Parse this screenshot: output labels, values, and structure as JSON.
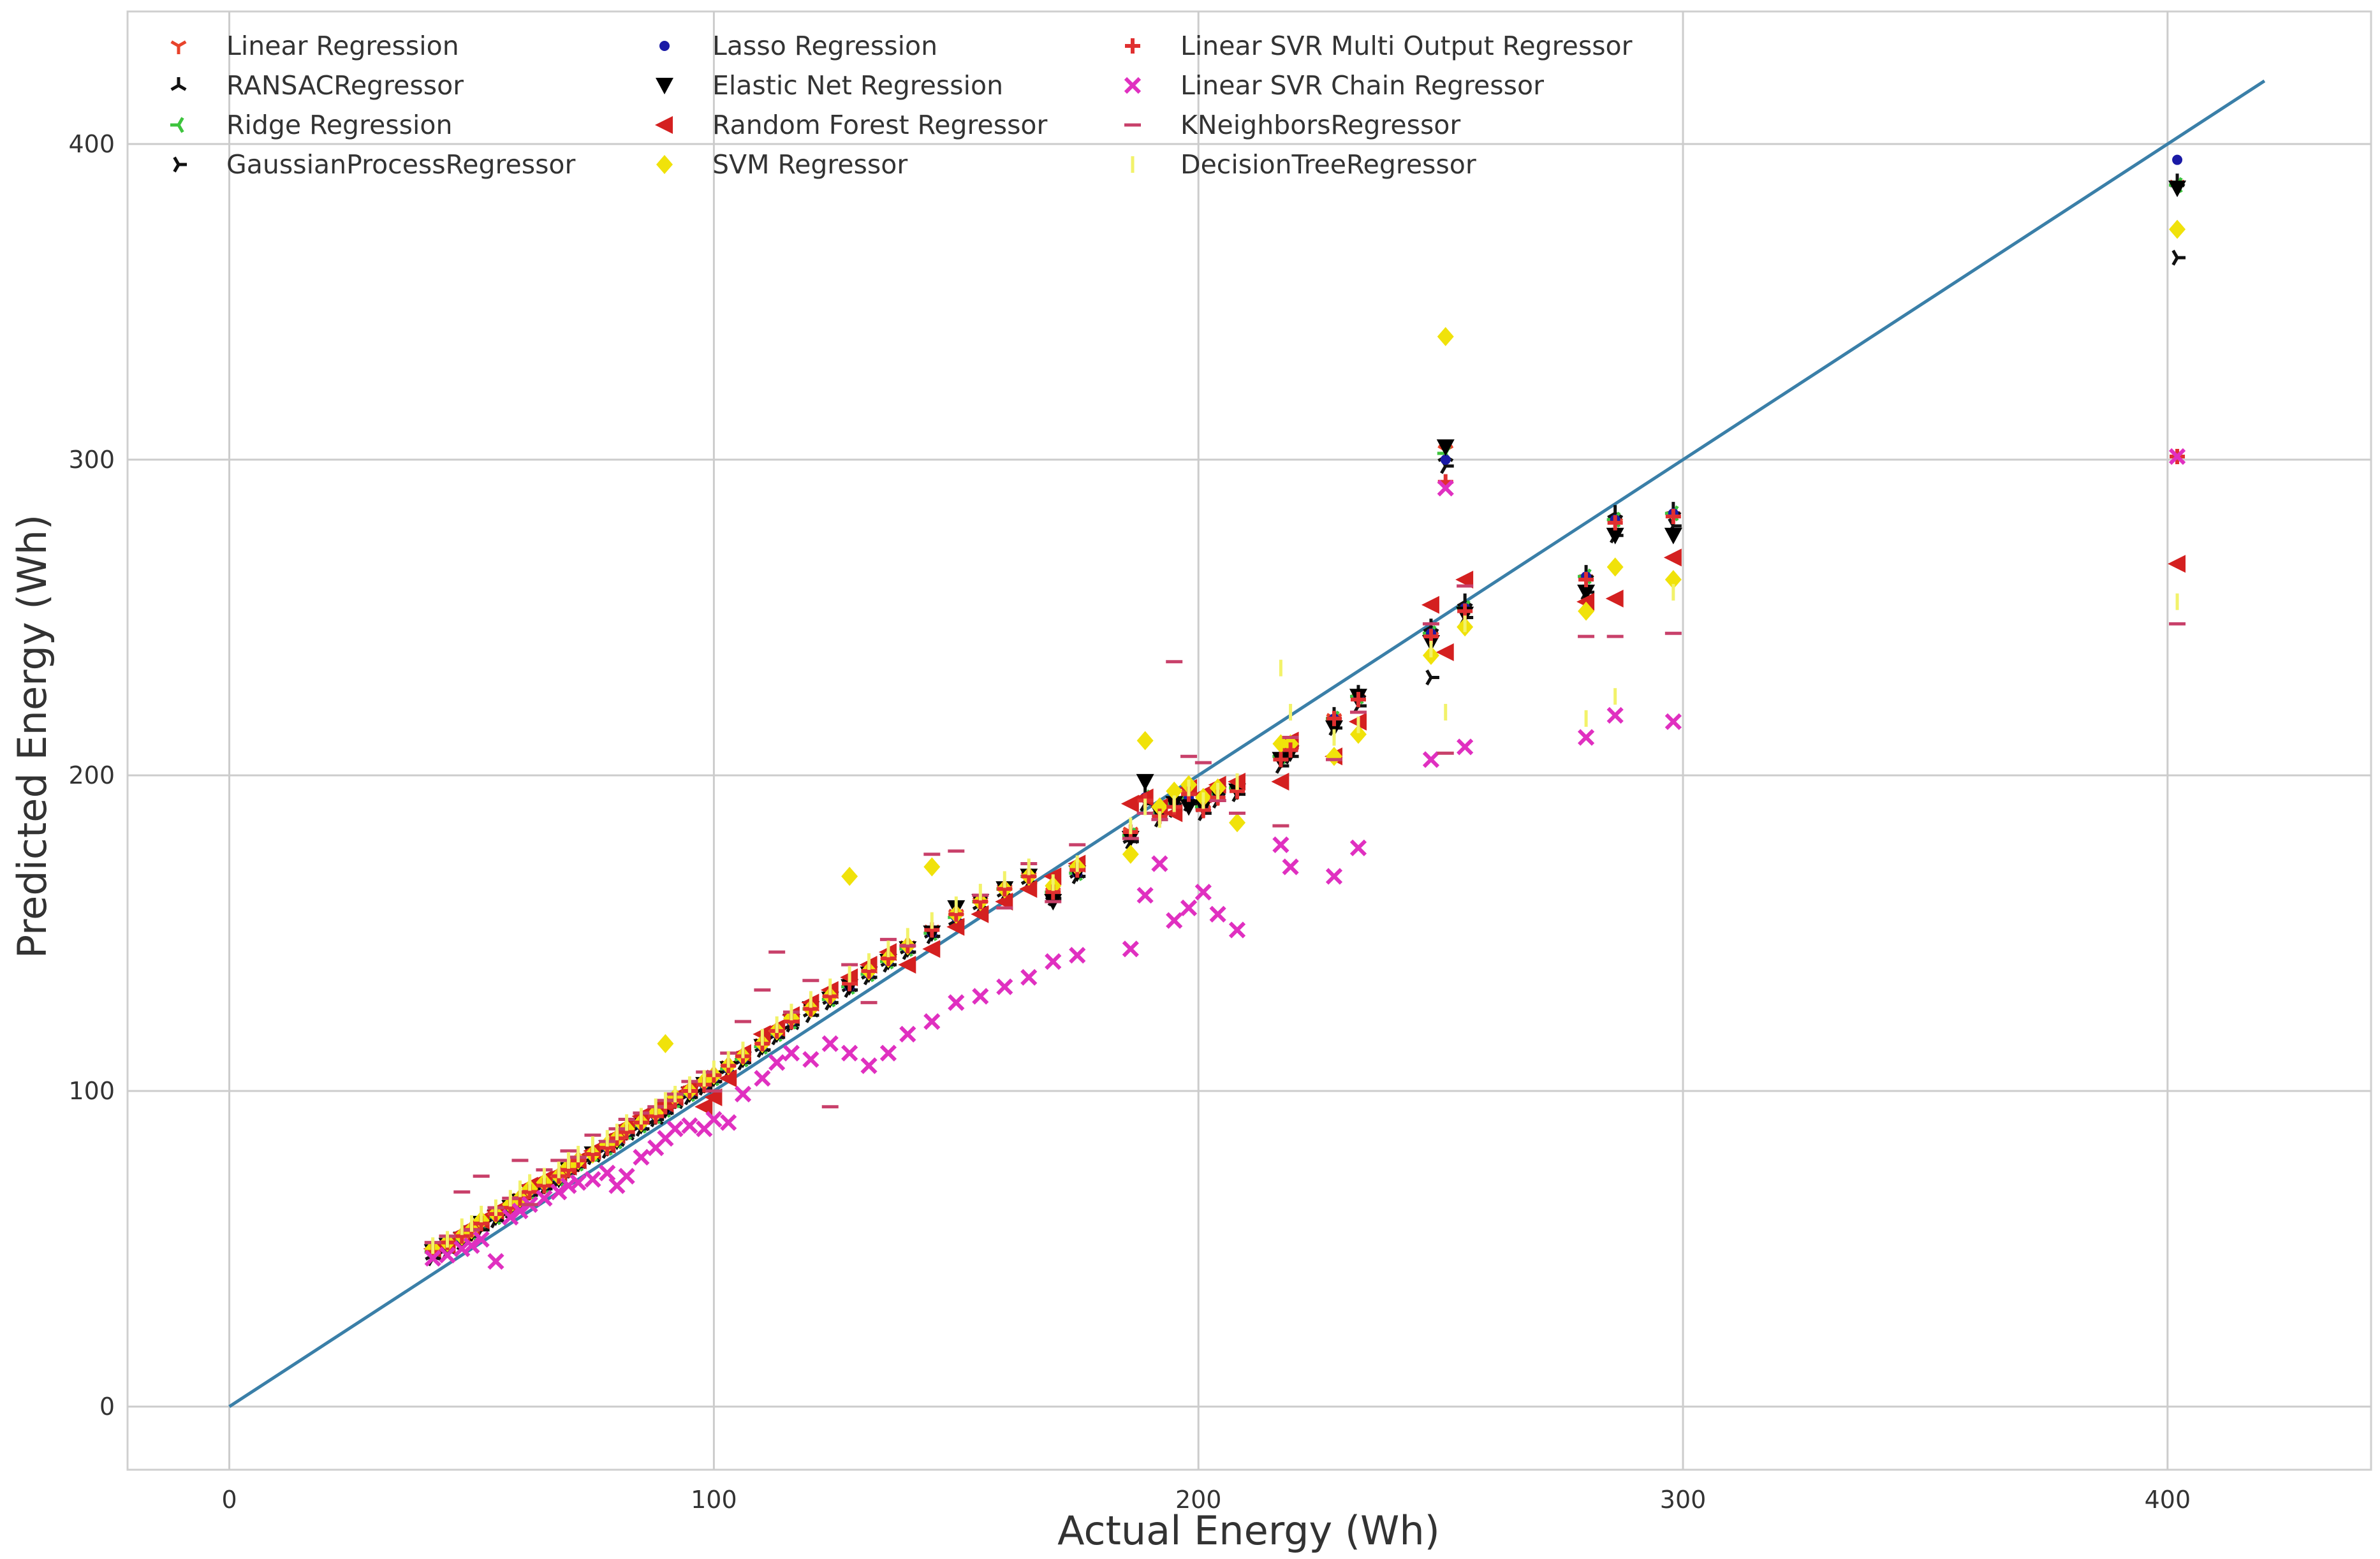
{
  "chart_data": {
    "type": "scatter",
    "title": "",
    "xlabel": "Actual Energy (Wh)",
    "ylabel": "Predicted Energy (Wh)",
    "xlim": [
      -21,
      442
    ],
    "ylim": [
      -20,
      442
    ],
    "xticks": [
      0,
      100,
      200,
      300,
      400
    ],
    "yticks": [
      0,
      100,
      200,
      300,
      400
    ],
    "grid": true,
    "legend_position": "top-left",
    "reference_line": {
      "x": [
        0,
        420
      ],
      "y": [
        0,
        420
      ],
      "color": "#3a7fa8"
    },
    "actual": [
      42,
      45,
      48,
      50,
      52,
      55,
      58,
      60,
      62,
      65,
      68,
      70,
      72,
      75,
      78,
      80,
      82,
      85,
      88,
      90,
      92,
      95,
      98,
      100,
      103,
      106,
      110,
      113,
      116,
      120,
      124,
      128,
      132,
      136,
      140,
      145,
      150,
      155,
      160,
      165,
      170,
      175,
      186,
      189,
      192,
      195,
      198,
      201,
      204,
      208,
      217,
      219,
      228,
      233,
      248,
      251,
      255,
      280,
      286,
      298,
      402
    ],
    "series": [
      {
        "name": "Linear Regression",
        "marker": "tri_down",
        "color": "#e8432b",
        "values": [
          49,
          51,
          53,
          55,
          58,
          61,
          63,
          66,
          68,
          70,
          73,
          75,
          77,
          80,
          82,
          85,
          87,
          90,
          92,
          95,
          97,
          100,
          102,
          105,
          108,
          111,
          115,
          119,
          122,
          126,
          130,
          134,
          138,
          142,
          146,
          151,
          156,
          160,
          164,
          168,
          163,
          170,
          182,
          192,
          187,
          190,
          194,
          189,
          193,
          195,
          205,
          208,
          218,
          224,
          244,
          303,
          252,
          262,
          280,
          282,
          387
        ]
      },
      {
        "name": "RANSACRegressor",
        "marker": "tri_up",
        "color": "#111111",
        "values": [
          48,
          50,
          53,
          55,
          57,
          60,
          62,
          65,
          67,
          70,
          72,
          75,
          77,
          79,
          82,
          84,
          86,
          89,
          91,
          94,
          96,
          99,
          101,
          104,
          107,
          110,
          114,
          118,
          121,
          125,
          129,
          133,
          137,
          141,
          145,
          150,
          154,
          159,
          163,
          167,
          162,
          169,
          180,
          194,
          188,
          192,
          193,
          190,
          195,
          197,
          207,
          209,
          219,
          226,
          247,
          301,
          255,
          264,
          283,
          284,
          388
        ]
      },
      {
        "name": "Ridge Regression",
        "marker": "tri_left",
        "color": "#3ec43e",
        "values": [
          49,
          51,
          53,
          55,
          58,
          60,
          63,
          65,
          68,
          70,
          72,
          75,
          77,
          80,
          82,
          84,
          87,
          89,
          92,
          94,
          97,
          99,
          102,
          104,
          107,
          110,
          114,
          118,
          122,
          126,
          129,
          133,
          137,
          141,
          145,
          150,
          155,
          160,
          164,
          168,
          163,
          169,
          181,
          193,
          188,
          191,
          193,
          190,
          194,
          196,
          206,
          208,
          218,
          225,
          245,
          302,
          253,
          263,
          281,
          283,
          387
        ]
      },
      {
        "name": "GaussianProcessRegressor",
        "marker": "tri_right",
        "color": "#111111",
        "values": [
          47,
          49,
          52,
          54,
          56,
          59,
          62,
          64,
          67,
          69,
          72,
          74,
          76,
          79,
          81,
          84,
          86,
          88,
          91,
          93,
          96,
          98,
          101,
          103,
          106,
          109,
          113,
          117,
          121,
          124,
          128,
          132,
          136,
          140,
          144,
          149,
          154,
          158,
          162,
          166,
          161,
          168,
          179,
          191,
          186,
          189,
          191,
          188,
          192,
          194,
          203,
          206,
          215,
          222,
          231,
          298,
          250,
          258,
          276,
          279,
          364
        ]
      },
      {
        "name": "Lasso Regression",
        "marker": "dot",
        "color": "#1a1aa6",
        "values": [
          49,
          51,
          53,
          55,
          58,
          60,
          63,
          65,
          68,
          70,
          72,
          75,
          77,
          80,
          82,
          84,
          87,
          89,
          92,
          94,
          97,
          99,
          102,
          104,
          107,
          110,
          114,
          118,
          122,
          126,
          129,
          133,
          137,
          141,
          145,
          150,
          155,
          160,
          164,
          168,
          163,
          169,
          181,
          193,
          188,
          191,
          193,
          190,
          194,
          196,
          206,
          208,
          218,
          225,
          245,
          300,
          253,
          263,
          281,
          283,
          395
        ]
      },
      {
        "name": "Elastic Net Regression",
        "marker": "triangle_down",
        "color": "#000000",
        "values": [
          49,
          51,
          53,
          55,
          58,
          60,
          63,
          65,
          68,
          70,
          72,
          75,
          77,
          80,
          82,
          84,
          87,
          89,
          92,
          94,
          97,
          99,
          102,
          104,
          107,
          110,
          114,
          118,
          122,
          126,
          129,
          133,
          137,
          141,
          145,
          150,
          158,
          160,
          164,
          168,
          160,
          169,
          180,
          198,
          188,
          191,
          190,
          190,
          194,
          195,
          205,
          207,
          215,
          225,
          242,
          304,
          251,
          258,
          276,
          276,
          386
        ]
      },
      {
        "name": "Random Forest Regressor",
        "marker": "triangle_left",
        "color": "#d42020",
        "values": [
          50,
          51,
          55,
          57,
          59,
          62,
          64,
          66,
          70,
          72,
          74,
          76,
          78,
          81,
          83,
          86,
          89,
          92,
          94,
          96,
          98,
          101,
          95,
          98,
          104,
          112,
          118,
          120,
          124,
          128,
          132,
          136,
          140,
          144,
          140,
          145,
          152,
          156,
          160,
          164,
          168,
          172,
          191,
          193,
          190,
          188,
          196,
          194,
          197,
          198,
          198,
          211,
          206,
          217,
          254,
          239,
          262,
          255,
          256,
          269,
          267
        ]
      },
      {
        "name": "SVM Regressor",
        "marker": "diamond",
        "color": "#f0e20a",
        "values": [
          50,
          52,
          54,
          56,
          59,
          61,
          64,
          66,
          69,
          71,
          73,
          76,
          78,
          80,
          83,
          85,
          88,
          90,
          93,
          115,
          98,
          100,
          103,
          105,
          108,
          111,
          115,
          119,
          123,
          126,
          130,
          168,
          138,
          142,
          146,
          171,
          156,
          160,
          164,
          168,
          165,
          171,
          175,
          211,
          190,
          195,
          197,
          193,
          196,
          185,
          210,
          210,
          206,
          213,
          238,
          339,
          247,
          252,
          266,
          262,
          373
        ]
      },
      {
        "name": "Linear SVR Multi Output Regressor",
        "marker": "plus",
        "color": "#e03030",
        "values": [
          49,
          52,
          54,
          56,
          58,
          61,
          63,
          66,
          68,
          70,
          73,
          75,
          78,
          80,
          82,
          85,
          87,
          90,
          92,
          95,
          97,
          100,
          102,
          105,
          108,
          111,
          115,
          119,
          122,
          126,
          130,
          134,
          138,
          142,
          146,
          151,
          156,
          160,
          164,
          168,
          163,
          170,
          182,
          192,
          187,
          190,
          194,
          189,
          193,
          195,
          205,
          208,
          218,
          224,
          244,
          293,
          252,
          262,
          280,
          282,
          301
        ]
      },
      {
        "name": "Linear SVR Chain Regressor",
        "marker": "x",
        "color": "#e030c0",
        "values": [
          47,
          48,
          50,
          51,
          53,
          46,
          60,
          62,
          64,
          66,
          68,
          70,
          71,
          72,
          74,
          70,
          73,
          79,
          82,
          85,
          88,
          89,
          88,
          91,
          90,
          99,
          104,
          109,
          112,
          110,
          115,
          112,
          108,
          112,
          118,
          122,
          128,
          130,
          133,
          136,
          141,
          143,
          145,
          162,
          172,
          154,
          158,
          163,
          156,
          151,
          178,
          171,
          168,
          177,
          205,
          291,
          209,
          212,
          219,
          217,
          301
        ]
      },
      {
        "name": "KNeighborsRegressor",
        "marker": "hline",
        "color": "#c8406a",
        "values": [
          52,
          54,
          68,
          56,
          73,
          63,
          66,
          78,
          64,
          75,
          78,
          81,
          79,
          86,
          84,
          88,
          91,
          93,
          95,
          97,
          99,
          103,
          106,
          100,
          112,
          122,
          132,
          144,
          125,
          135,
          95,
          140,
          128,
          148,
          146,
          175,
          176,
          162,
          158,
          172,
          160,
          178,
          180,
          188,
          186,
          236,
          206,
          204,
          192,
          188,
          184,
          212,
          205,
          220,
          248,
          207,
          260,
          244,
          244,
          245,
          248
        ]
      },
      {
        "name": "DecisionTreeRegressor",
        "marker": "vline",
        "color": "#f2f26a",
        "values": [
          51,
          53,
          57,
          58,
          61,
          63,
          66,
          69,
          71,
          73,
          75,
          78,
          80,
          83,
          85,
          87,
          90,
          92,
          95,
          97,
          99,
          102,
          104,
          107,
          110,
          113,
          117,
          121,
          125,
          129,
          133,
          137,
          141,
          145,
          149,
          154,
          159,
          163,
          167,
          171,
          166,
          172,
          184,
          190,
          186,
          191,
          196,
          192,
          195,
          198,
          234,
          220,
          212,
          216,
          240,
          220,
          248,
          218,
          225,
          258,
          255
        ]
      }
    ]
  }
}
